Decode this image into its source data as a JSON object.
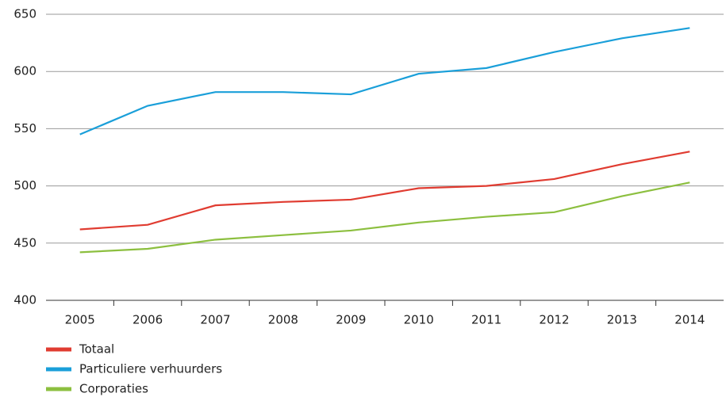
{
  "chart_data": {
    "type": "line",
    "categories": [
      "2005",
      "2006",
      "2007",
      "2008",
      "2009",
      "2010",
      "2011",
      "2012",
      "2013",
      "2014"
    ],
    "series": [
      {
        "name": "Totaal",
        "color": "#e03c31",
        "values": [
          462,
          466,
          483,
          486,
          488,
          498,
          500,
          506,
          519,
          530
        ]
      },
      {
        "name": "Particuliere verhuurders",
        "color": "#1a9fd9",
        "values": [
          545,
          570,
          582,
          582,
          580,
          598,
          603,
          617,
          629,
          638
        ]
      },
      {
        "name": "Corporaties",
        "color": "#8cbf3f",
        "values": [
          442,
          445,
          453,
          457,
          461,
          468,
          473,
          477,
          491,
          503
        ]
      }
    ],
    "ylim": [
      400,
      650
    ],
    "yticks": [
      400,
      450,
      500,
      550,
      600,
      650
    ],
    "grid": true,
    "legend": "bottom-left"
  }
}
